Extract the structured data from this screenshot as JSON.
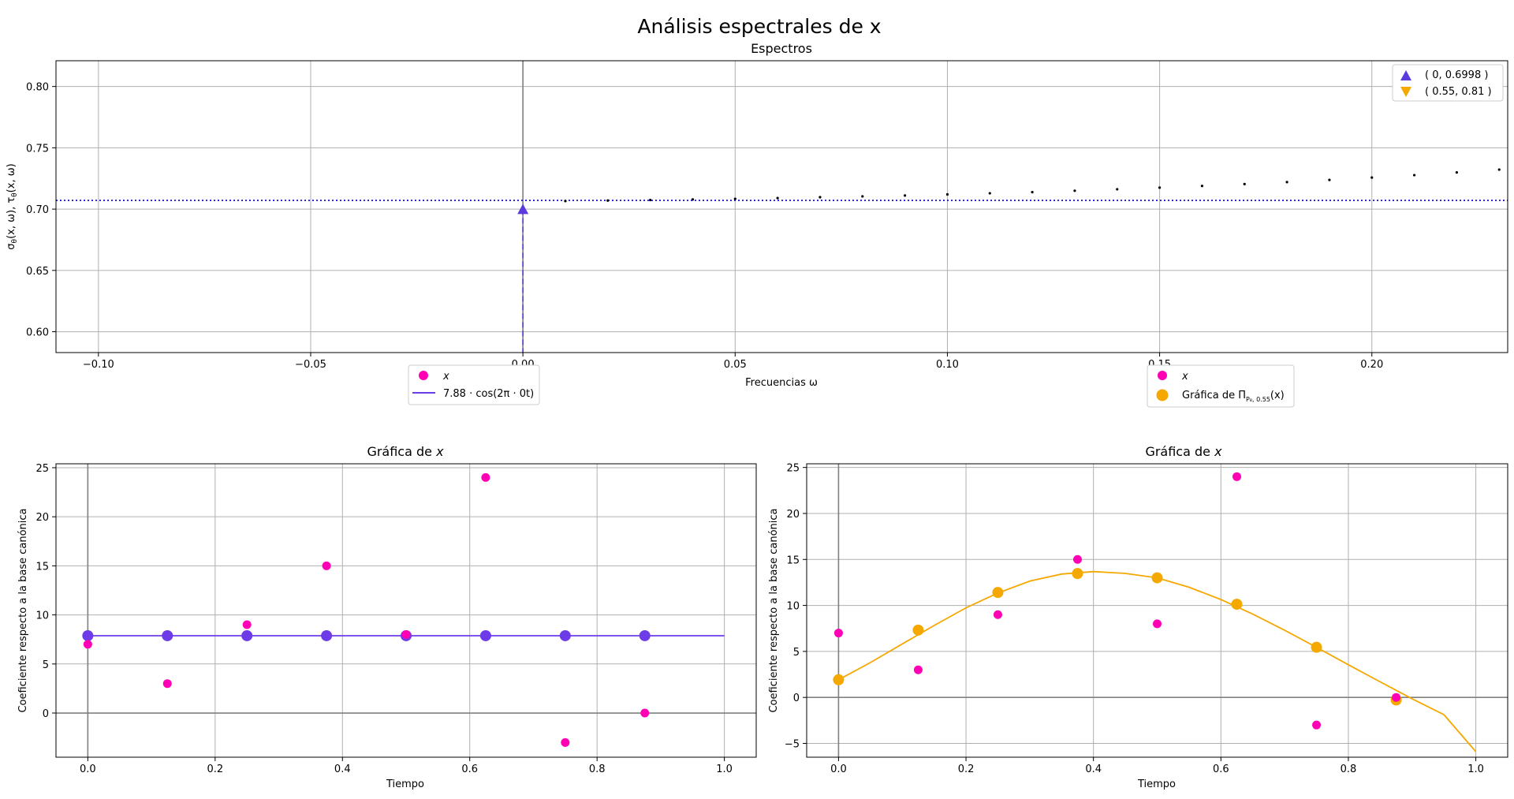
{
  "figure": {
    "suptitle": "Análisis espectrales de x"
  },
  "chart_data": [
    {
      "id": "spectrum",
      "type": "scatter",
      "title": "Espectros",
      "xlabel": "Frecuencias ω",
      "ylabel": "σ_θ(x, ω), τ_θ(x, ω)",
      "xlim": [
        -0.11,
        0.232
      ],
      "ylim": [
        0.583,
        0.821
      ],
      "xticks": [
        -0.1,
        -0.05,
        0.0,
        0.05,
        0.1,
        0.15,
        0.2
      ],
      "xtick_labels": [
        "−0.10",
        "−0.05",
        "0.00",
        "0.05",
        "0.10",
        "0.15",
        "0.20"
      ],
      "yticks": [
        0.6,
        0.65,
        0.7,
        0.75,
        0.8
      ],
      "ytick_labels": [
        "0.60",
        "0.65",
        "0.70",
        "0.75",
        "0.80"
      ],
      "grid": true,
      "hline": {
        "y": 0.7071,
        "style": "dotted",
        "color": "#0000cc"
      },
      "series": [
        {
          "kind": "points",
          "color": "#000000",
          "x": [
            0.01,
            0.02,
            0.03,
            0.04,
            0.05,
            0.06,
            0.07,
            0.08,
            0.09,
            0.1,
            0.11,
            0.12,
            0.13,
            0.14,
            0.15,
            0.16,
            0.17,
            0.18,
            0.19,
            0.2,
            0.21,
            0.22,
            0.23
          ],
          "y": [
            0.7066,
            0.707,
            0.7074,
            0.7079,
            0.7084,
            0.709,
            0.7097,
            0.7104,
            0.7111,
            0.712,
            0.7129,
            0.7138,
            0.715,
            0.7162,
            0.7175,
            0.7189,
            0.7204,
            0.722,
            0.7238,
            0.7257,
            0.7277,
            0.7299,
            0.7322
          ]
        },
        {
          "kind": "marker_up",
          "name": "( 0, 0.6998 )",
          "color": "#5b3bdb",
          "x": [
            0.0
          ],
          "y": [
            0.6998
          ]
        },
        {
          "kind": "marker_down",
          "name": "( 0.55, 0.81 )",
          "color": "#f5a800",
          "x": [],
          "y": []
        }
      ],
      "stem": {
        "x": 0.0,
        "y": 0.6998,
        "color": "#5b3bdb",
        "style": "dashed"
      },
      "legend_position": "upper right"
    },
    {
      "id": "canonical_cos",
      "type": "scatter",
      "title": "Gráfica de x",
      "xlabel": "Tiempo",
      "ylabel": "Coeficiente respecto a la base canónica",
      "xlim": [
        -0.05,
        1.05
      ],
      "ylim": [
        -4.5,
        25.4
      ],
      "xticks": [
        0.0,
        0.2,
        0.4,
        0.6,
        0.8,
        1.0
      ],
      "xtick_labels": [
        "0.0",
        "0.2",
        "0.4",
        "0.6",
        "0.8",
        "1.0"
      ],
      "yticks": [
        0,
        5,
        10,
        15,
        20,
        25
      ],
      "ytick_labels": [
        "0",
        "5",
        "10",
        "15",
        "20",
        "25"
      ],
      "grid": true,
      "series": [
        {
          "kind": "line",
          "name": "7.88 · cos(2π · 0t)",
          "color": "#6e3be8",
          "x": [
            0.0,
            1.0
          ],
          "y": [
            7.88,
            7.88
          ]
        },
        {
          "kind": "big_points",
          "color": "#6e3be8",
          "x": [
            0.0,
            0.125,
            0.25,
            0.375,
            0.5,
            0.625,
            0.75,
            0.875
          ],
          "y": [
            7.88,
            7.88,
            7.88,
            7.88,
            7.88,
            7.88,
            7.88,
            7.88
          ]
        },
        {
          "kind": "points",
          "name": "x",
          "color": "#ff00b4",
          "x": [
            0.0,
            0.125,
            0.25,
            0.375,
            0.5,
            0.625,
            0.75,
            0.875
          ],
          "y": [
            7,
            3,
            9,
            15,
            8,
            24,
            -3,
            0
          ]
        }
      ],
      "legend": [
        {
          "label": "x",
          "kind": "dot",
          "color": "#ff00b4"
        },
        {
          "label": "7.88 · cos(2π · 0t)",
          "kind": "line",
          "color": "#6e3be8"
        }
      ],
      "legend_position": "above, left of center"
    },
    {
      "id": "projection",
      "type": "scatter",
      "title": "Gráfica de x",
      "xlabel": "Tiempo",
      "ylabel": "Coeficiente respecto a la base canónica",
      "xlim": [
        -0.05,
        1.05
      ],
      "ylim": [
        -6.5,
        25.4
      ],
      "xticks": [
        0.0,
        0.2,
        0.4,
        0.6,
        0.8,
        1.0
      ],
      "xtick_labels": [
        "0.0",
        "0.2",
        "0.4",
        "0.6",
        "0.8",
        "1.0"
      ],
      "yticks": [
        -5,
        0,
        5,
        10,
        15,
        20,
        25
      ],
      "ytick_labels": [
        "−5",
        "0",
        "5",
        "10",
        "15",
        "20",
        "25"
      ],
      "grid": true,
      "series": [
        {
          "kind": "curve",
          "color": "#f5a800",
          "x": [
            0.0,
            0.05,
            0.1,
            0.15,
            0.2,
            0.25,
            0.3,
            0.35,
            0.4,
            0.45,
            0.5,
            0.55,
            0.6,
            0.65,
            0.7,
            0.75,
            0.8,
            0.85,
            0.9,
            0.95,
            1.0
          ],
          "y": [
            1.92,
            3.79,
            5.81,
            7.82,
            9.74,
            11.35,
            12.64,
            13.41,
            13.68,
            13.48,
            13.0,
            11.98,
            10.64,
            9.06,
            7.3,
            5.45,
            3.55,
            1.69,
            -0.15,
            -1.88,
            -5.9
          ]
        },
        {
          "kind": "big_points",
          "name": "Gráfica de Π",
          "color": "#f5a800",
          "x": [
            0.0,
            0.125,
            0.25,
            0.375,
            0.5,
            0.625,
            0.75,
            0.875
          ],
          "y": [
            1.92,
            7.32,
            11.41,
            13.47,
            13.0,
            10.13,
            5.45,
            -0.28
          ]
        },
        {
          "kind": "points",
          "name": "x",
          "color": "#ff00b4",
          "x": [
            0.0,
            0.125,
            0.25,
            0.375,
            0.5,
            0.625,
            0.75,
            0.875
          ],
          "y": [
            7,
            3,
            9,
            15,
            8,
            24,
            -3,
            0
          ]
        }
      ],
      "legend": [
        {
          "label": "x",
          "kind": "dot",
          "color": "#ff00b4"
        },
        {
          "label": "Gráfica de Π",
          "sub": "P₈, 0.55",
          "tail": "(x)",
          "kind": "bigdot",
          "color": "#f5a800"
        }
      ],
      "legend_position": "above, right of center"
    }
  ]
}
